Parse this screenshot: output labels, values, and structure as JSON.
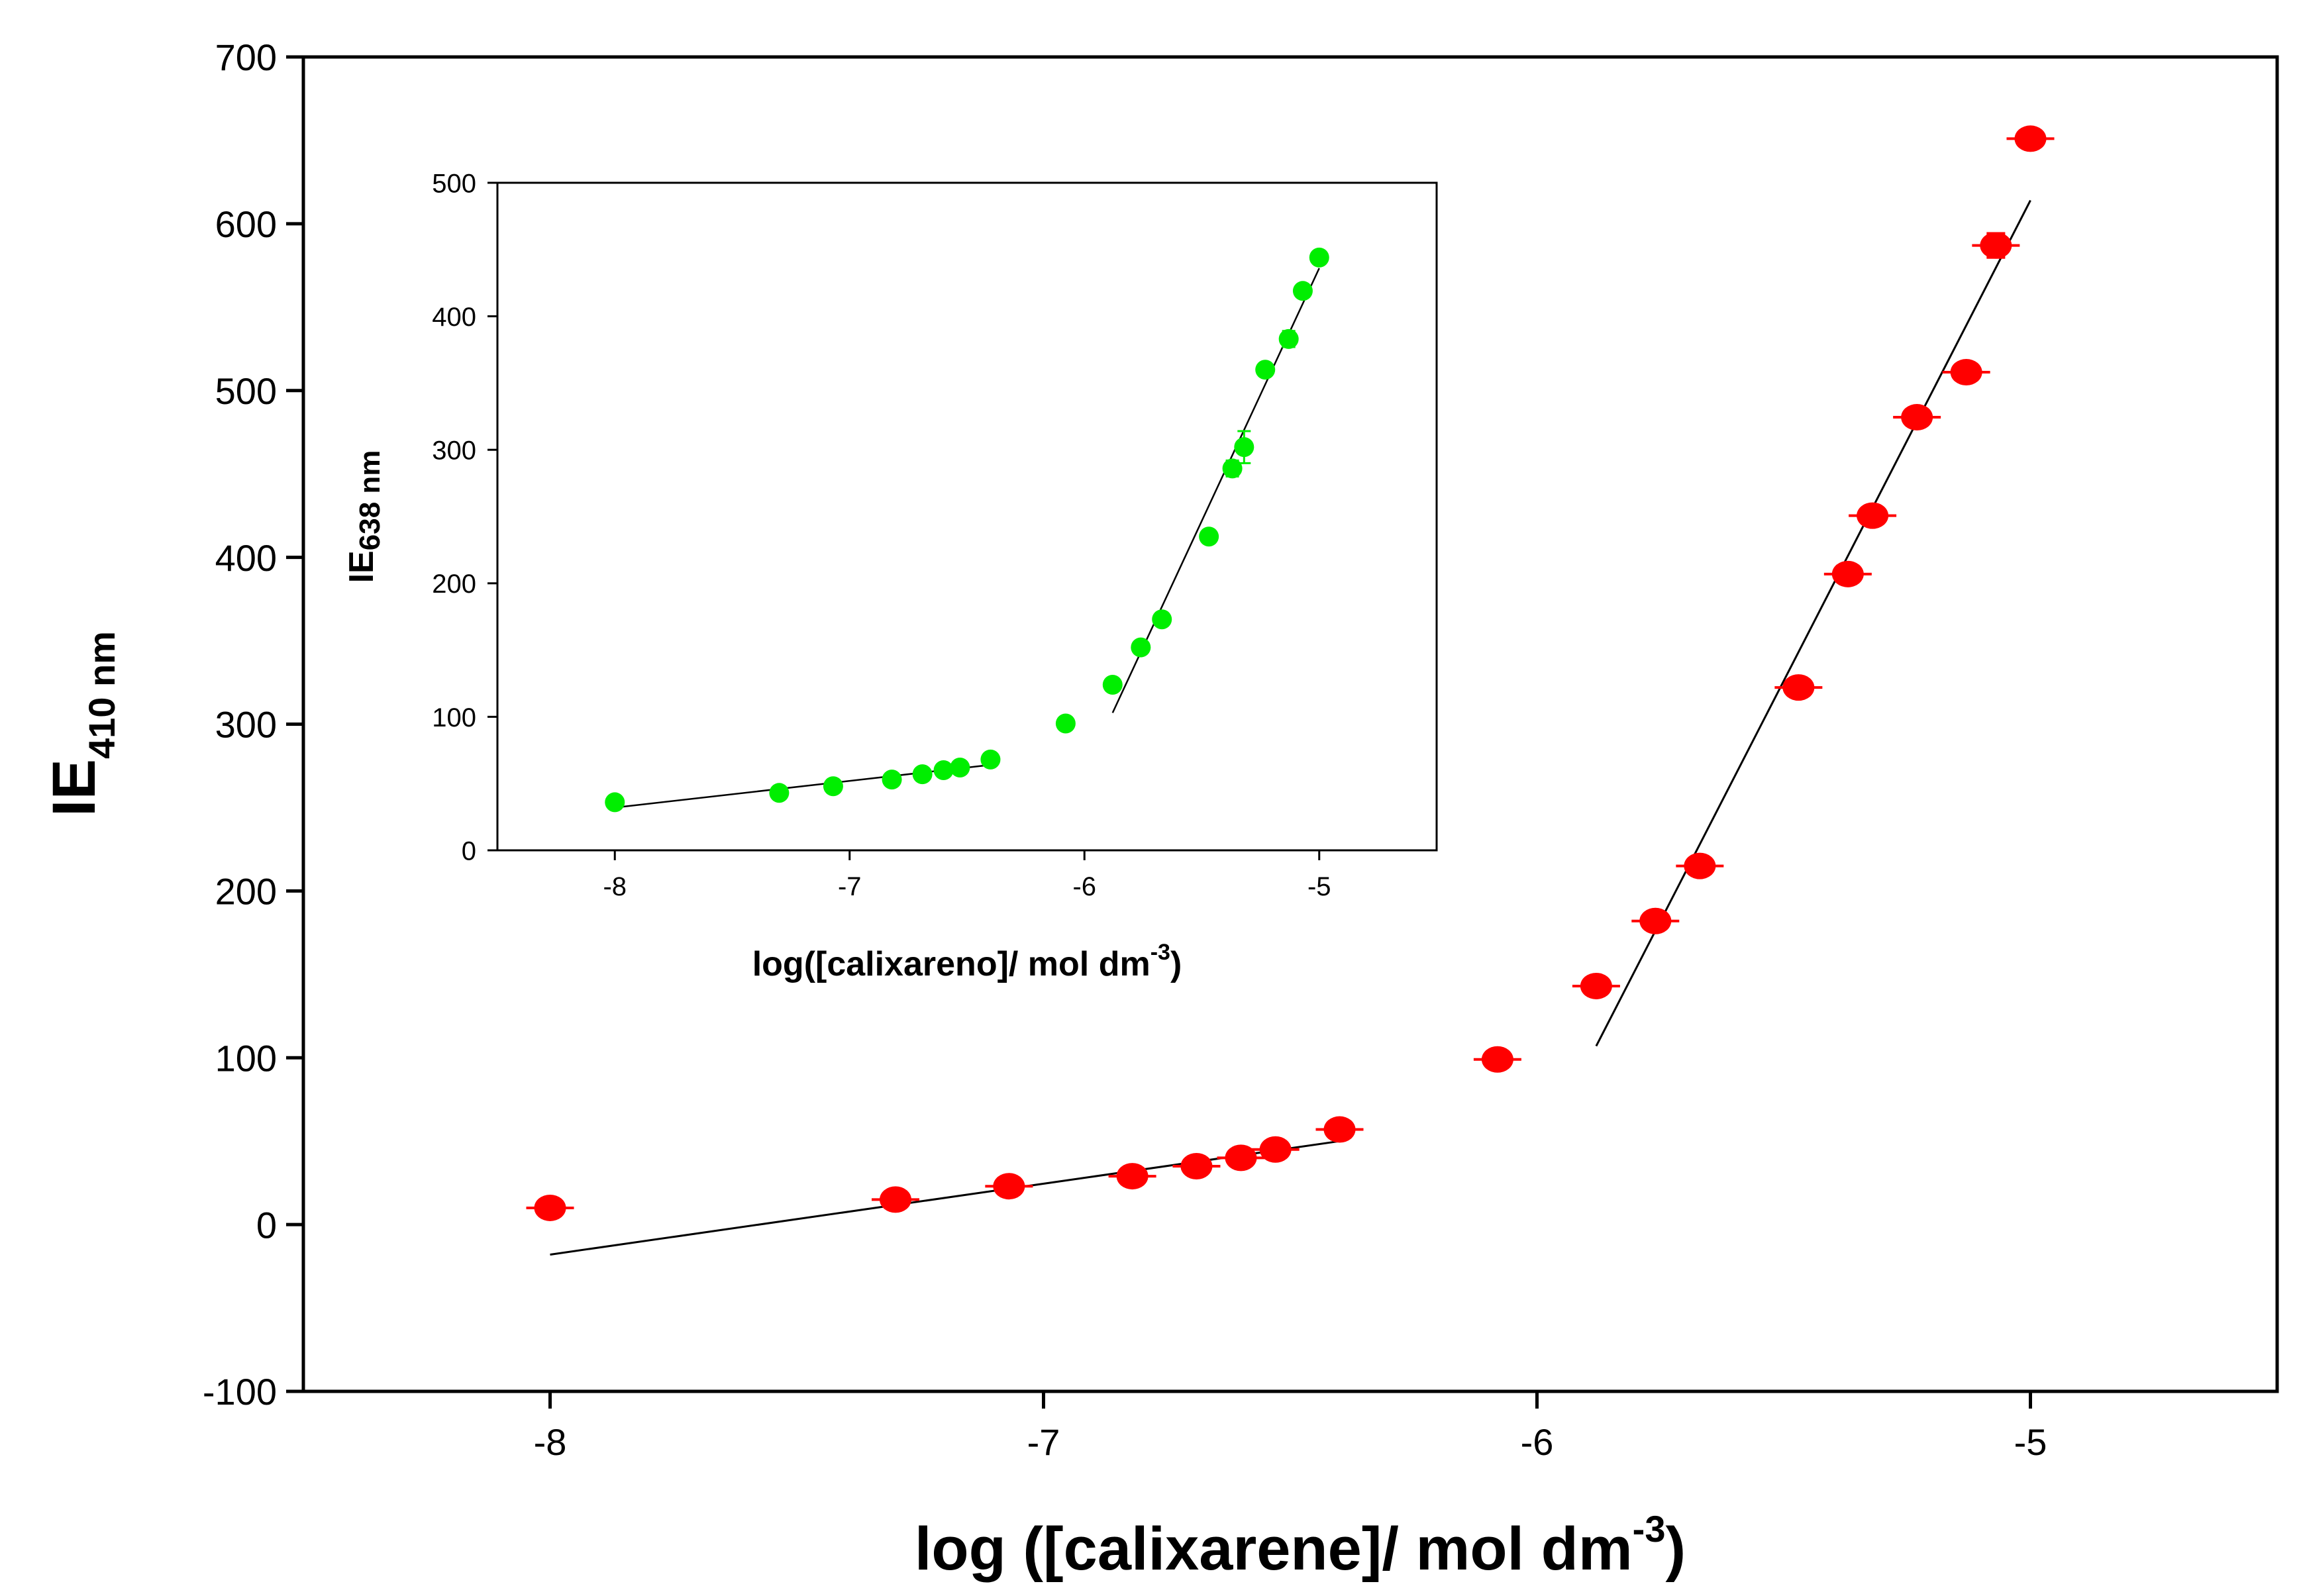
{
  "chart_data": [
    {
      "type": "scatter",
      "role": "main",
      "ylabel_main": "IE",
      "ylabel_sub": "410 nm",
      "xlabel_main": "log ([calixarene]/ mol dm",
      "xlabel_sup": "-3",
      "xlabel_close": ")",
      "xlim": [
        -8.5,
        -4.5
      ],
      "ylim": [
        -100,
        700
      ],
      "xticks": [
        -8,
        -7,
        -6,
        -5
      ],
      "yticks": [
        -100,
        0,
        100,
        200,
        300,
        400,
        500,
        600,
        700
      ],
      "x_tick_labels": [
        "-8",
        "-7",
        "-6",
        "-5"
      ],
      "y_tick_labels": [
        "-100",
        "0",
        "100",
        "200",
        "300",
        "400",
        "500",
        "600",
        "700"
      ],
      "marker_color": "#ff0000",
      "points": [
        {
          "x": -8.0,
          "y": 10,
          "err": 0
        },
        {
          "x": -7.3,
          "y": 15,
          "err": 0
        },
        {
          "x": -7.07,
          "y": 23,
          "err": 0
        },
        {
          "x": -6.82,
          "y": 29,
          "err": 0
        },
        {
          "x": -6.69,
          "y": 35,
          "err": 0
        },
        {
          "x": -6.6,
          "y": 40,
          "err": 0
        },
        {
          "x": -6.53,
          "y": 45,
          "err": 0
        },
        {
          "x": -6.4,
          "y": 57,
          "err": 0
        },
        {
          "x": -6.08,
          "y": 99,
          "err": 0
        },
        {
          "x": -5.88,
          "y": 143,
          "err": 2
        },
        {
          "x": -5.76,
          "y": 182,
          "err": 3
        },
        {
          "x": -5.67,
          "y": 215,
          "err": 5
        },
        {
          "x": -5.47,
          "y": 322,
          "err": 3
        },
        {
          "x": -5.37,
          "y": 390,
          "err": 3
        },
        {
          "x": -5.32,
          "y": 425,
          "err": 3
        },
        {
          "x": -5.23,
          "y": 484,
          "err": 5
        },
        {
          "x": -5.13,
          "y": 511,
          "err": 4
        },
        {
          "x": -5.07,
          "y": 587,
          "err": 7
        },
        {
          "x": -5.0,
          "y": 651,
          "err": 3
        }
      ],
      "fit_lines": [
        {
          "x": [
            -8.0,
            -6.4
          ],
          "y": [
            -18,
            50
          ]
        },
        {
          "x": [
            -5.88,
            -5.0
          ],
          "y": [
            107,
            614
          ]
        }
      ]
    },
    {
      "type": "scatter",
      "role": "inset",
      "ylabel_main": "IE",
      "ylabel_sub": "638 nm",
      "xlabel_main": "log([calixareno]/ mol dm",
      "xlabel_sup": "-3",
      "xlabel_close": ")",
      "xlim": [
        -8.5,
        -4.5
      ],
      "ylim": [
        0,
        500
      ],
      "xticks": [
        -8,
        -7,
        -6,
        -5
      ],
      "yticks": [
        0,
        100,
        200,
        300,
        400,
        500
      ],
      "x_tick_labels": [
        "-8",
        "-7",
        "-6",
        "-5"
      ],
      "y_tick_labels": [
        "0",
        "100",
        "200",
        "300",
        "400",
        "500"
      ],
      "marker_color": "#00ee00",
      "points": [
        {
          "x": -8.0,
          "y": 36,
          "err": 0
        },
        {
          "x": -7.3,
          "y": 43,
          "err": 0
        },
        {
          "x": -7.07,
          "y": 48,
          "err": 0
        },
        {
          "x": -6.82,
          "y": 53,
          "err": 0
        },
        {
          "x": -6.69,
          "y": 57,
          "err": 0
        },
        {
          "x": -6.6,
          "y": 60,
          "err": 0
        },
        {
          "x": -6.53,
          "y": 62,
          "err": 0
        },
        {
          "x": -6.4,
          "y": 68,
          "err": 0
        },
        {
          "x": -6.08,
          "y": 95,
          "err": 0
        },
        {
          "x": -5.88,
          "y": 124,
          "err": 0
        },
        {
          "x": -5.76,
          "y": 152,
          "err": 0
        },
        {
          "x": -5.67,
          "y": 173,
          "err": 0
        },
        {
          "x": -5.47,
          "y": 235,
          "err": 0
        },
        {
          "x": -5.37,
          "y": 286,
          "err": 6
        },
        {
          "x": -5.32,
          "y": 302,
          "err": 12
        },
        {
          "x": -5.23,
          "y": 360,
          "err": 0
        },
        {
          "x": -5.13,
          "y": 383,
          "err": 6
        },
        {
          "x": -5.07,
          "y": 419,
          "err": 0
        },
        {
          "x": -5.0,
          "y": 444,
          "err": 0
        }
      ],
      "fit_lines": [
        {
          "x": [
            -8.0,
            -6.4
          ],
          "y": [
            32,
            64
          ]
        },
        {
          "x": [
            -5.88,
            -5.0
          ],
          "y": [
            103,
            436
          ]
        }
      ]
    }
  ]
}
